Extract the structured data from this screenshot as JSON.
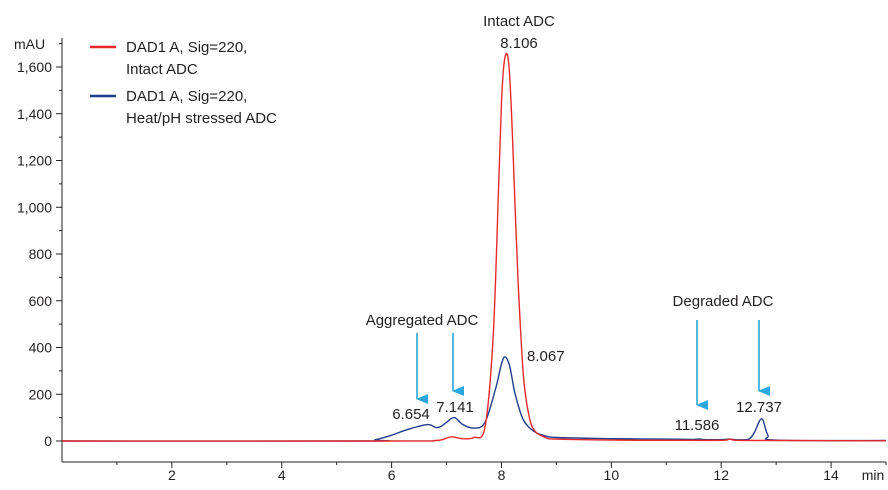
{
  "chart_data": {
    "type": "line",
    "title": "",
    "xlabel": "min",
    "ylabel": "mAU",
    "xlim": [
      0,
      15
    ],
    "ylim": [
      -80,
      1700
    ],
    "grid": false,
    "legend_position": "top-left",
    "x_ticks": [
      2,
      4,
      6,
      8,
      10,
      12,
      14
    ],
    "x_tick_labels": [
      "2",
      "4",
      "6",
      "8",
      "10",
      "12",
      "14"
    ],
    "y_ticks": [
      0,
      200,
      400,
      600,
      800,
      1000,
      1200,
      1400,
      1600
    ],
    "y_tick_labels": [
      "0",
      "200",
      "400",
      "600",
      "800",
      "1,000",
      "1,200",
      "1,400",
      "1,600"
    ],
    "colors": {
      "intact": "#e8282b",
      "stressed": "#1f3d8a",
      "arrow": "#2aa7dd"
    },
    "series": [
      {
        "name": "DAD1 A, Sig=220,\nIntact ADC",
        "legend_lines": [
          "DAD1 A, Sig=220,",
          "Intact ADC"
        ],
        "color": "#e8282b",
        "x": [
          0,
          6.0,
          6.8,
          7.0,
          7.1,
          7.3,
          7.5,
          7.7,
          7.85,
          7.95,
          8.0,
          8.05,
          8.106,
          8.15,
          8.2,
          8.3,
          8.4,
          8.5,
          8.6,
          8.8,
          9.0,
          10.0,
          11.0,
          12.0,
          12.15,
          12.3,
          13.0,
          15.0
        ],
        "y": [
          0,
          0,
          2,
          12,
          18,
          10,
          15,
          60,
          450,
          1100,
          1450,
          1620,
          1655,
          1560,
          1300,
          700,
          280,
          110,
          45,
          15,
          8,
          4,
          3,
          3,
          8,
          3,
          2,
          1
        ]
      },
      {
        "name": "DAD1 A, Sig=220,\nHeat/pH stressed ADC",
        "legend_lines": [
          "DAD1 A, Sig=220,",
          "Heat/pH stressed ADC"
        ],
        "color": "#1f3d8a",
        "x": [
          0,
          5.5,
          5.7,
          6.0,
          6.3,
          6.654,
          6.8,
          6.9,
          7.0,
          7.141,
          7.3,
          7.5,
          7.7,
          7.9,
          8.0,
          8.067,
          8.15,
          8.25,
          8.4,
          8.6,
          8.8,
          9.0,
          10.0,
          11.0,
          11.5,
          11.586,
          11.7,
          12.0,
          12.15,
          12.3,
          12.5,
          12.6,
          12.737,
          12.85,
          13.0,
          15.0
        ],
        "y": [
          0,
          0,
          5,
          25,
          50,
          70,
          58,
          62,
          80,
          100,
          70,
          55,
          80,
          230,
          330,
          360,
          320,
          200,
          90,
          40,
          22,
          15,
          10,
          8,
          7,
          9,
          6,
          6,
          8,
          5,
          8,
          35,
          95,
          25,
          4,
          2
        ]
      }
    ],
    "peak_labels": [
      {
        "text": "8.106",
        "x": 8.106,
        "y": 1655
      },
      {
        "text": "8.067",
        "x": 8.067,
        "y": 360
      },
      {
        "text": "6.654",
        "x": 6.654,
        "y": 70
      },
      {
        "text": "7.141",
        "x": 7.141,
        "y": 100
      },
      {
        "text": "11.586",
        "x": 11.586,
        "y": 9
      },
      {
        "text": "12.737",
        "x": 12.737,
        "y": 95
      }
    ],
    "annotations": [
      {
        "text": "Intact ADC"
      },
      {
        "text": "Aggregated ADC",
        "arrows_x": [
          6.5,
          7.1
        ]
      },
      {
        "text": "Degraded ADC",
        "arrows_x": [
          11.6,
          12.73
        ]
      }
    ]
  }
}
